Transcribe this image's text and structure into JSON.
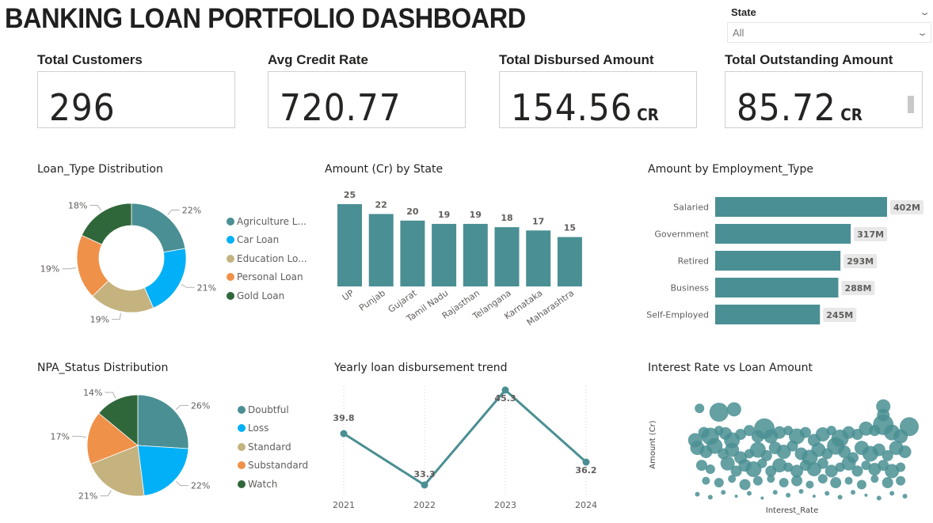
{
  "header": {
    "title": "BANKING LOAN PORTFOLIO DASHBOARD"
  },
  "slicer": {
    "label": "State",
    "value": "All",
    "chevron_icon": "chevron-down-icon"
  },
  "kpis": [
    {
      "label": "Total Customers",
      "value": "296",
      "unit": ""
    },
    {
      "label": "Avg Credit Rate",
      "value": "720.77",
      "unit": ""
    },
    {
      "label": "Total Disbursed Amount",
      "value": "154.56",
      "unit": "CR"
    },
    {
      "label": "Total Outstanding Amount",
      "value": "85.72",
      "unit": "CR"
    }
  ],
  "colors": {
    "teal": "#4A8F93",
    "blue": "#01B0F6",
    "tan": "#C4B27F",
    "orange": "#F0914A",
    "green": "#30673A"
  },
  "chart_data": [
    {
      "id": "loan_type",
      "type": "pie",
      "variant": "donut",
      "title": "Loan_Type Distribution",
      "categories": [
        "Agriculture L...",
        "Car Loan",
        "Education Lo...",
        "Personal Loan",
        "Gold Loan"
      ],
      "values": [
        22,
        21,
        19,
        19,
        18
      ],
      "labels": [
        "22%",
        "21%",
        "19%",
        "19%",
        "18%"
      ],
      "colors": [
        "#4A8F93",
        "#01B0F6",
        "#C4B27F",
        "#F0914A",
        "#30673A"
      ],
      "legend": "right"
    },
    {
      "id": "amount_by_state",
      "type": "bar",
      "title": "Amount (Cr) by State",
      "categories": [
        "UP",
        "Punjab",
        "Gujarat",
        "Tamil Nadu",
        "Rajasthan",
        "Telangana",
        "Karnataka",
        "Maharashtra"
      ],
      "values": [
        25,
        22,
        20,
        19,
        19,
        18,
        17,
        15
      ],
      "xlabel": "",
      "ylabel": "",
      "ylim": [
        0,
        25
      ],
      "grid": false
    },
    {
      "id": "amount_by_employment",
      "type": "bar",
      "orientation": "horizontal",
      "title": "Amount by Employment_Type",
      "categories": [
        "Salaried",
        "Government",
        "Retired",
        "Business",
        "Self-Employed"
      ],
      "values": [
        402,
        317,
        293,
        288,
        245
      ],
      "labels": [
        "402M",
        "317M",
        "293M",
        "288M",
        "245M"
      ],
      "xlim": [
        0,
        402
      ],
      "grid": false
    },
    {
      "id": "npa_status",
      "type": "pie",
      "title": "NPA_Status Distribution",
      "categories": [
        "Doubtful",
        "Loss",
        "Standard",
        "Substandard",
        "Watch"
      ],
      "values": [
        26,
        22,
        21,
        17,
        14
      ],
      "labels": [
        "26%",
        "22%",
        "21%",
        "17%",
        "14%"
      ],
      "colors": [
        "#4A8F93",
        "#01B0F6",
        "#C4B27F",
        "#F0914A",
        "#30673A"
      ],
      "legend": "right"
    },
    {
      "id": "yearly_trend",
      "type": "line",
      "title": "Yearly loan disbursement trend",
      "x": [
        "2021",
        "2022",
        "2023",
        "2024"
      ],
      "values": [
        39.8,
        33.3,
        45.3,
        36.2
      ],
      "ylim": [
        33.3,
        45.3
      ],
      "grid": true
    },
    {
      "id": "interest_vs_amount",
      "type": "scatter",
      "title": "Interest Rate vs Loan Amount",
      "xlabel": "Interest_Rate",
      "ylabel": "Amount (Cr)",
      "xlim": [
        0,
        100
      ],
      "ylim": [
        0,
        100
      ],
      "points": [
        [
          3,
          95,
          6
        ],
        [
          12,
          91,
          12
        ],
        [
          19,
          94,
          9
        ],
        [
          88,
          97,
          9
        ],
        [
          88,
          88,
          8
        ],
        [
          1,
          62,
          9
        ],
        [
          5,
          70,
          7
        ],
        [
          8,
          66,
          11
        ],
        [
          12,
          72,
          6
        ],
        [
          15,
          69,
          8
        ],
        [
          18,
          62,
          10
        ],
        [
          22,
          68,
          7
        ],
        [
          26,
          72,
          7
        ],
        [
          30,
          66,
          8
        ],
        [
          33,
          74,
          13
        ],
        [
          36,
          66,
          9
        ],
        [
          40,
          70,
          8
        ],
        [
          44,
          72,
          6
        ],
        [
          48,
          66,
          10
        ],
        [
          52,
          70,
          7
        ],
        [
          56,
          62,
          8
        ],
        [
          60,
          68,
          9
        ],
        [
          64,
          72,
          6
        ],
        [
          68,
          64,
          11
        ],
        [
          72,
          70,
          8
        ],
        [
          76,
          68,
          7
        ],
        [
          80,
          74,
          9
        ],
        [
          84,
          72,
          7
        ],
        [
          88,
          78,
          13
        ],
        [
          92,
          70,
          10
        ],
        [
          96,
          66,
          9
        ],
        [
          100,
          76,
          12
        ],
        [
          2,
          54,
          9
        ],
        [
          6,
          50,
          8
        ],
        [
          10,
          56,
          10
        ],
        [
          14,
          48,
          7
        ],
        [
          18,
          52,
          9
        ],
        [
          22,
          44,
          8
        ],
        [
          26,
          48,
          6
        ],
        [
          30,
          52,
          10
        ],
        [
          34,
          46,
          7
        ],
        [
          38,
          54,
          8
        ],
        [
          42,
          50,
          9
        ],
        [
          46,
          56,
          7
        ],
        [
          50,
          48,
          8
        ],
        [
          54,
          44,
          10
        ],
        [
          58,
          52,
          9
        ],
        [
          62,
          48,
          7
        ],
        [
          66,
          56,
          11
        ],
        [
          70,
          50,
          8
        ],
        [
          74,
          44,
          7
        ],
        [
          78,
          54,
          9
        ],
        [
          82,
          48,
          10
        ],
        [
          86,
          52,
          8
        ],
        [
          90,
          46,
          7
        ],
        [
          94,
          54,
          9
        ],
        [
          98,
          50,
          8
        ],
        [
          4,
          36,
          7
        ],
        [
          8,
          32,
          6
        ],
        [
          16,
          38,
          9
        ],
        [
          20,
          30,
          7
        ],
        [
          24,
          36,
          8
        ],
        [
          28,
          32,
          10
        ],
        [
          32,
          38,
          6
        ],
        [
          36,
          30,
          7
        ],
        [
          40,
          36,
          9
        ],
        [
          44,
          34,
          6
        ],
        [
          48,
          30,
          8
        ],
        [
          52,
          36,
          7
        ],
        [
          56,
          32,
          9
        ],
        [
          60,
          38,
          7
        ],
        [
          64,
          30,
          8
        ],
        [
          68,
          34,
          6
        ],
        [
          72,
          38,
          9
        ],
        [
          76,
          30,
          7
        ],
        [
          80,
          36,
          6
        ],
        [
          84,
          32,
          8
        ],
        [
          88,
          36,
          7
        ],
        [
          92,
          30,
          9
        ],
        [
          96,
          34,
          6
        ],
        [
          6,
          20,
          5
        ],
        [
          12,
          18,
          6
        ],
        [
          18,
          22,
          5
        ],
        [
          24,
          16,
          7
        ],
        [
          30,
          20,
          6
        ],
        [
          36,
          22,
          5
        ],
        [
          42,
          18,
          6
        ],
        [
          48,
          20,
          7
        ],
        [
          54,
          16,
          5
        ],
        [
          60,
          22,
          6
        ],
        [
          66,
          18,
          7
        ],
        [
          72,
          20,
          5
        ],
        [
          78,
          16,
          6
        ],
        [
          84,
          22,
          5
        ],
        [
          90,
          18,
          7
        ],
        [
          96,
          20,
          6
        ],
        [
          2,
          6,
          3
        ],
        [
          8,
          3,
          3
        ],
        [
          14,
          8,
          3
        ],
        [
          20,
          4,
          2
        ],
        [
          26,
          7,
          3
        ],
        [
          32,
          2,
          2
        ],
        [
          38,
          8,
          3
        ],
        [
          44,
          5,
          3
        ],
        [
          50,
          9,
          3
        ],
        [
          56,
          4,
          2
        ],
        [
          62,
          7,
          3
        ],
        [
          68,
          3,
          3
        ],
        [
          74,
          8,
          3
        ],
        [
          80,
          5,
          2
        ],
        [
          86,
          2,
          3
        ],
        [
          92,
          7,
          3
        ],
        [
          98,
          4,
          3
        ]
      ]
    }
  ]
}
